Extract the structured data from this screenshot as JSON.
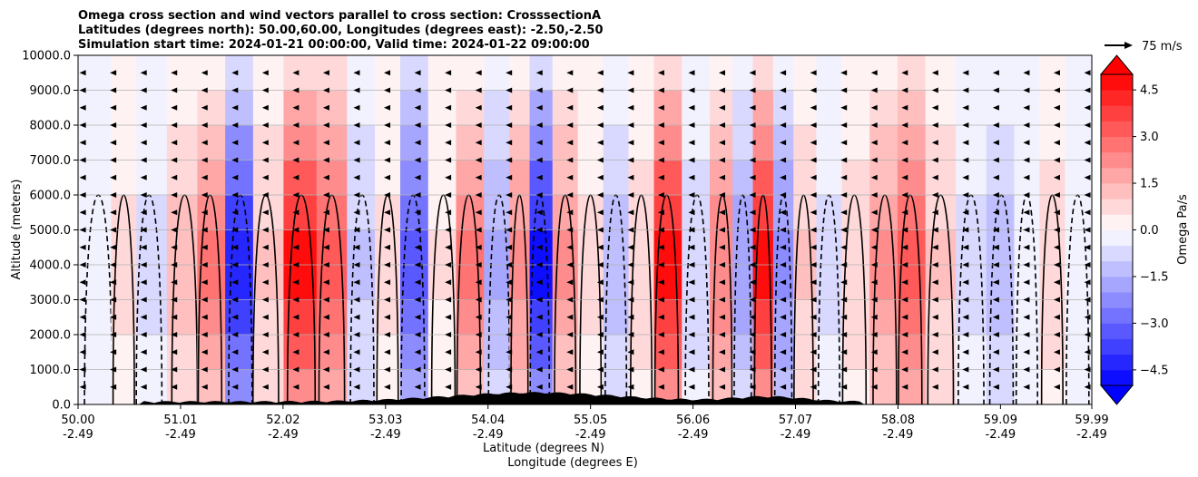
{
  "chart_data": {
    "type": "heatmap",
    "title_lines": [
      "Omega cross section and wind vectors parallel to cross section: CrosssectionA",
      "Latitudes (degrees north): 50.00,60.00, Longitudes (degrees east): -2.50,-2.50",
      "Simulation start time: 2024-01-21 00:00:00, Valid time: 2024-01-22 09:00:00"
    ],
    "ylabel": "Altitude (meters)",
    "xlabel_1": "Latitude (degrees N)",
    "xlabel_2": "Longitude (degrees E)",
    "y_ticks": [
      "0.0",
      "1000.0",
      "2000.0",
      "3000.0",
      "4000.0",
      "5000.0",
      "6000.0",
      "7000.0",
      "8000.0",
      "9000.0",
      "10000.0"
    ],
    "ylim": [
      0,
      10000
    ],
    "x_ticks_lat": [
      "50.00",
      "51.01",
      "52.02",
      "53.03",
      "54.04",
      "55.05",
      "56.06",
      "57.07",
      "58.08",
      "59.09",
      "59.99"
    ],
    "x_ticks_lon": [
      "-2.49",
      "-2.49",
      "-2.49",
      "-2.49",
      "-2.49",
      "-2.49",
      "-2.49",
      "-2.49",
      "-2.49",
      "-2.49",
      "-2.49"
    ],
    "xlim": [
      50.0,
      59.99
    ],
    "grid": "horizontal",
    "colorbar": {
      "label": "Omega Pa/s",
      "ticks": [
        "4.5",
        "3.0",
        "1.5",
        "0.0",
        "−1.5",
        "−3.0",
        "−4.5"
      ],
      "tick_values": [
        4.5,
        3.0,
        1.5,
        0.0,
        -1.5,
        -3.0,
        -4.5
      ],
      "range": [
        -5.0,
        5.0
      ],
      "extend": "both",
      "colormap": "bwr",
      "neg_color": "#0000ff",
      "pos_color": "#ff0000"
    },
    "quiver_key": {
      "label": "75 m/s"
    },
    "omega_columns": [
      {
        "lat": 50.2,
        "omega": -0.4
      },
      {
        "lat": 50.45,
        "omega": 0.8
      },
      {
        "lat": 50.7,
        "omega": -0.8
      },
      {
        "lat": 51.05,
        "omega": 1.5
      },
      {
        "lat": 51.3,
        "omega": 3.0
      },
      {
        "lat": 51.6,
        "omega": -4.8
      },
      {
        "lat": 51.85,
        "omega": 1.2
      },
      {
        "lat": 52.2,
        "omega": 5.0
      },
      {
        "lat": 52.5,
        "omega": 3.5
      },
      {
        "lat": 52.8,
        "omega": -1.2
      },
      {
        "lat": 53.05,
        "omega": 0.8
      },
      {
        "lat": 53.3,
        "omega": -3.5
      },
      {
        "lat": 53.6,
        "omega": 0.6
      },
      {
        "lat": 53.85,
        "omega": 3.2
      },
      {
        "lat": 54.15,
        "omega": -1.8
      },
      {
        "lat": 54.35,
        "omega": 2.5
      },
      {
        "lat": 54.55,
        "omega": -5.0
      },
      {
        "lat": 54.8,
        "omega": 2.2
      },
      {
        "lat": 55.05,
        "omega": 0.7
      },
      {
        "lat": 55.3,
        "omega": -1.6
      },
      {
        "lat": 55.55,
        "omega": 1.0
      },
      {
        "lat": 55.8,
        "omega": 5.0
      },
      {
        "lat": 56.1,
        "omega": -0.9
      },
      {
        "lat": 56.35,
        "omega": 2.6
      },
      {
        "lat": 56.55,
        "omega": -2.0
      },
      {
        "lat": 56.75,
        "omega": 5.0
      },
      {
        "lat": 56.95,
        "omega": -2.5
      },
      {
        "lat": 57.15,
        "omega": 1.2
      },
      {
        "lat": 57.4,
        "omega": -0.8
      },
      {
        "lat": 57.65,
        "omega": 0.9
      },
      {
        "lat": 57.95,
        "omega": 2.2
      },
      {
        "lat": 58.2,
        "omega": 3.6
      },
      {
        "lat": 58.5,
        "omega": 1.2
      },
      {
        "lat": 58.8,
        "omega": -0.7
      },
      {
        "lat": 59.1,
        "omega": -1.6
      },
      {
        "lat": 59.35,
        "omega": -0.4
      },
      {
        "lat": 59.6,
        "omega": 0.9
      },
      {
        "lat": 59.85,
        "omega": -0.5
      }
    ]
  }
}
